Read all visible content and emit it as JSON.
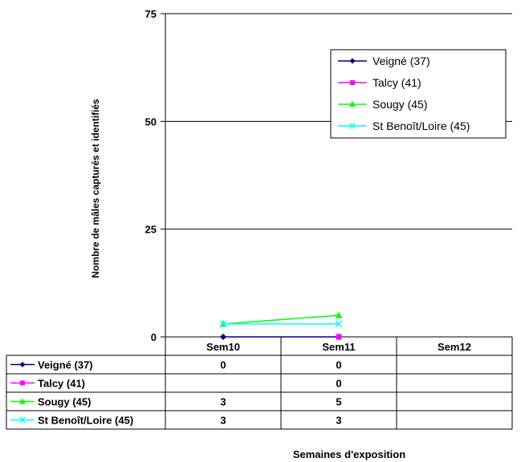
{
  "chart_data": {
    "type": "line",
    "xlabel": "Semaines d'exposition",
    "ylabel": "Nombre de mâles capturés et identifiés",
    "categories": [
      "Sem10",
      "Sem11",
      "Sem12"
    ],
    "ylim": [
      0,
      75
    ],
    "yticks": [
      0,
      25,
      50,
      75
    ],
    "grid": true,
    "legend_position": "top-right",
    "data_table": true,
    "series": [
      {
        "name": "Veigné (37)",
        "values": [
          0,
          0,
          null
        ],
        "color": "#000080",
        "marker": "diamond"
      },
      {
        "name": "Talcy (41)",
        "values": [
          null,
          0,
          null
        ],
        "color": "#ff00ff",
        "marker": "square"
      },
      {
        "name": "Sougy (45)",
        "values": [
          3,
          5,
          null
        ],
        "color": "#00ff00",
        "marker": "triangle"
      },
      {
        "name": "St Benoît/Loire (45)",
        "values": [
          3,
          3,
          null
        ],
        "color": "#00ffff",
        "marker": "x"
      }
    ]
  }
}
